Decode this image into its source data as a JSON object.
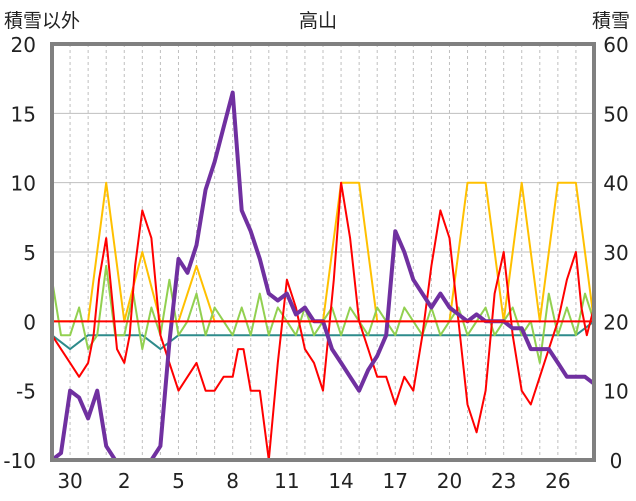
{
  "chart_data": {
    "type": "line",
    "title": "高山",
    "left_axis_title": "積雪以外",
    "right_axis_title": "積雪",
    "ylim_left": [
      -10,
      20
    ],
    "ylim_right": [
      0,
      60
    ],
    "left_ticks": [
      "20",
      "15",
      "10",
      "5",
      "0",
      "-5",
      "-10"
    ],
    "right_ticks": [
      "60",
      "50",
      "40",
      "30",
      "20",
      "10",
      "0"
    ],
    "x_tick_labels": [
      "30",
      "2",
      "5",
      "8",
      "11",
      "14",
      "17",
      "20",
      "23",
      "26"
    ],
    "x_tick_day_index": [
      1,
      4,
      7,
      10,
      13,
      16,
      19,
      22,
      25,
      28
    ],
    "x_range_days": [
      0,
      30
    ],
    "grid": "vertical dotted per day, horizontal at 0/5/10/15",
    "series": [
      {
        "color": "#ff0000",
        "axis": "left",
        "x": [
          0,
          0.5,
          1,
          1.5,
          2,
          2.3,
          2.6,
          3,
          3.3,
          3.6,
          4,
          4.3,
          4.6,
          5,
          5.5,
          6,
          6.5,
          7,
          7.5,
          8,
          8.5,
          9,
          9.5,
          10,
          10.3,
          10.6,
          11,
          11.5,
          12,
          12.5,
          13,
          13.5,
          14,
          14.5,
          15,
          15.3,
          15.6,
          16,
          16.5,
          17,
          17.5,
          18,
          18.5,
          19,
          19.5,
          20,
          20.5,
          21,
          21.5,
          22,
          22.5,
          23,
          23.5,
          24,
          24.5,
          25,
          25.5,
          26,
          26.5,
          27,
          27.5,
          28,
          28.5,
          29,
          29.3,
          29.6,
          30
        ],
        "y": [
          -1,
          -2,
          -3,
          -4,
          -3,
          -1,
          3,
          6,
          2,
          -2,
          -3,
          -1,
          4,
          8,
          6,
          -1,
          -3,
          -5,
          -4,
          -3,
          -5,
          -5,
          -4,
          -4,
          -2,
          -2,
          -5,
          -5,
          -10,
          -3,
          3,
          1,
          -2,
          -3,
          -5,
          -1,
          3,
          10,
          6,
          0,
          -2,
          -4,
          -4,
          -6,
          -4,
          -5,
          -1,
          4,
          8,
          6,
          0,
          -6,
          -8,
          -5,
          2,
          5,
          -1,
          -5,
          -6,
          -4,
          -2,
          0,
          3,
          5,
          1,
          -1,
          1
        ]
      },
      {
        "color": "#ffc000",
        "axis": "left",
        "x": [
          0,
          1,
          2,
          3,
          4,
          5,
          6,
          7,
          8,
          9,
          10,
          11,
          12,
          13,
          14,
          15,
          16,
          17,
          18,
          19,
          20,
          21,
          22,
          23,
          24,
          25,
          26,
          27,
          28,
          29,
          30
        ],
        "y": [
          0,
          0,
          0,
          10,
          0,
          5,
          0,
          0,
          4,
          0,
          0,
          0,
          0,
          0,
          0,
          0,
          10,
          10,
          0,
          0,
          0,
          0,
          0,
          10,
          10,
          0,
          10,
          0,
          10,
          10,
          0
        ]
      },
      {
        "color": "#92d050",
        "axis": "left",
        "x": [
          0,
          0.5,
          1,
          1.5,
          2,
          2.5,
          3,
          3.5,
          4,
          4.5,
          5,
          5.5,
          6,
          6.5,
          7,
          7.5,
          8,
          8.5,
          9,
          9.5,
          10,
          10.5,
          11,
          11.5,
          12,
          12.5,
          13,
          13.5,
          14,
          14.5,
          15,
          15.5,
          16,
          16.5,
          17,
          17.5,
          18,
          18.5,
          19,
          19.5,
          20,
          20.5,
          21,
          21.5,
          22,
          22.5,
          23,
          23.5,
          24,
          24.5,
          25,
          25.5,
          26,
          26.5,
          27,
          27.5,
          28,
          28.5,
          29,
          29.5,
          30
        ],
        "y": [
          3,
          -1,
          -1,
          1,
          -2,
          -1,
          4,
          -1,
          -1,
          2,
          -2,
          1,
          -1,
          3,
          -1,
          0,
          2,
          -1,
          1,
          0,
          -1,
          1,
          -1,
          2,
          -1,
          1,
          0,
          -1,
          1,
          -1,
          0,
          1,
          -1,
          1,
          0,
          -1,
          1,
          0,
          -1,
          1,
          0,
          -1,
          1,
          -1,
          0,
          1,
          -1,
          0,
          1,
          -1,
          0,
          1,
          -1,
          0,
          -3,
          2,
          -1,
          1,
          -1,
          2,
          0
        ]
      },
      {
        "color": "#2e8b8b",
        "axis": "left",
        "x": [
          0,
          1,
          2,
          3,
          4,
          5,
          6,
          7,
          8,
          9,
          10,
          11,
          12,
          13,
          14,
          15,
          16,
          17,
          18,
          19,
          20,
          21,
          22,
          23,
          24,
          25,
          26,
          27,
          28,
          29,
          30
        ],
        "y": [
          -1,
          -2,
          -1,
          -1,
          -1,
          -1,
          -2,
          -1,
          -1,
          -1,
          -1,
          -1,
          -1,
          -1,
          -1,
          -1,
          -1,
          -1,
          -1,
          -1,
          -1,
          -1,
          -1,
          -1,
          -1,
          -1,
          -1,
          -1,
          -1,
          -1,
          0
        ]
      },
      {
        "color": "#7030a0",
        "axis": "right",
        "x": [
          0,
          0.5,
          1,
          1.5,
          2,
          2.5,
          3,
          3.5,
          4,
          4.5,
          5,
          5.5,
          6,
          6.5,
          7,
          7.5,
          8,
          8.5,
          9,
          9.5,
          10,
          10.5,
          11,
          11.5,
          12,
          12.5,
          13,
          13.5,
          14,
          14.5,
          15,
          15.5,
          16,
          16.5,
          17,
          17.5,
          18,
          18.5,
          19,
          19.5,
          20,
          20.5,
          21,
          21.5,
          22,
          22.5,
          23,
          23.5,
          24,
          24.5,
          25,
          25.5,
          26,
          26.5,
          27,
          27.5,
          28,
          28.5,
          29,
          29.5,
          30
        ],
        "y": [
          0,
          1,
          10,
          9,
          6,
          10,
          2,
          0,
          0,
          0,
          0,
          0,
          2,
          17,
          29,
          27,
          31,
          39,
          43,
          48,
          53,
          36,
          33,
          29,
          24,
          23,
          24,
          21,
          22,
          20,
          20,
          16,
          14,
          12,
          10,
          13,
          15,
          18,
          33,
          30,
          26,
          24,
          22,
          24,
          22,
          21,
          20,
          21,
          20,
          20,
          20,
          19,
          19,
          16,
          16,
          16,
          14,
          12,
          12,
          12,
          11
        ]
      }
    ]
  }
}
